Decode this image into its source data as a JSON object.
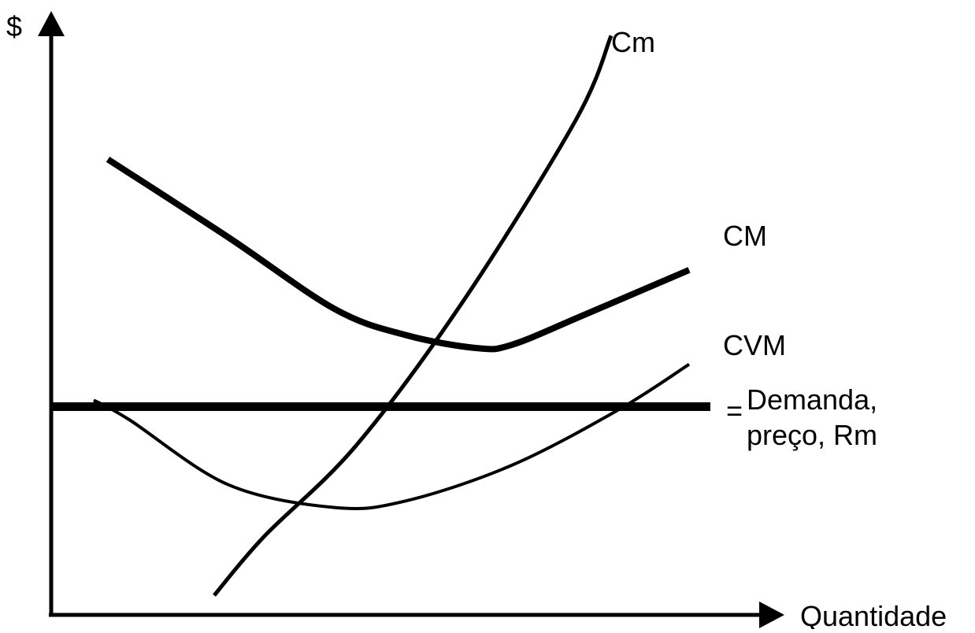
{
  "chart_data": {
    "type": "line",
    "title": "",
    "xlabel": "Quantidade",
    "ylabel": "$",
    "grid": false,
    "legend": "none",
    "series": [
      {
        "name": "Cm",
        "weight": "medium",
        "points": [
          [
            2.3,
            0.3
          ],
          [
            3.0,
            1.2
          ],
          [
            4.3,
            2.6
          ],
          [
            5.8,
            4.8
          ],
          [
            7.4,
            7.6
          ],
          [
            7.9,
            8.9
          ]
        ]
      },
      {
        "name": "CM",
        "weight": "bold",
        "points": [
          [
            0.8,
            7.0
          ],
          [
            2.5,
            5.8
          ],
          [
            4.0,
            4.7
          ],
          [
            5.0,
            4.3
          ],
          [
            6.0,
            4.1
          ],
          [
            6.5,
            4.15
          ],
          [
            7.5,
            4.6
          ],
          [
            9.0,
            5.3
          ]
        ]
      },
      {
        "name": "CVM",
        "weight": "thin",
        "points": [
          [
            0.6,
            3.3
          ],
          [
            1.1,
            3.0
          ],
          [
            2.5,
            2.0
          ],
          [
            4.0,
            1.65
          ],
          [
            5.0,
            1.75
          ],
          [
            6.5,
            2.3
          ],
          [
            8.0,
            3.15
          ],
          [
            9.0,
            3.85
          ]
        ]
      },
      {
        "name": "Demanda, preço, Rm",
        "weight": "extra-bold",
        "points": [
          [
            0.0,
            3.2
          ],
          [
            9.3,
            3.2
          ]
        ]
      }
    ],
    "labels": {
      "cm": "Cm",
      "cm_avg": "CM",
      "cvm": "CVM",
      "equals": "=",
      "demand_line1": "Demanda,",
      "demand_line2": "preço, Rm"
    },
    "xlim": [
      0,
      10
    ],
    "ylim": [
      0,
      9
    ]
  }
}
